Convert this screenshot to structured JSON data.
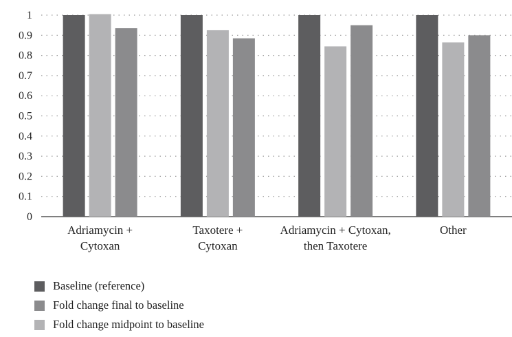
{
  "chart_data": {
    "type": "bar",
    "title": "",
    "xlabel": "",
    "ylabel": "",
    "ylim": [
      0,
      1
    ],
    "yticks": [
      "0",
      "0.1",
      "0.2",
      "0.3",
      "0.4",
      "0.5",
      "0.6",
      "0.7",
      "0.8",
      "0.9",
      "1"
    ],
    "grid": "dotted horizontal",
    "categories": [
      [
        "Adriamycin +",
        "Cytoxan"
      ],
      [
        "Taxotere +",
        "Cytoxan"
      ],
      [
        "Adriamycin + Cytoxan,",
        "then Taxotere"
      ],
      [
        "Other"
      ]
    ],
    "series": [
      {
        "name": "Baseline (reference)",
        "color": "#5d5d5f",
        "values": [
          1,
          1,
          1,
          1
        ]
      },
      {
        "name": "Fold change midpoint to baseline",
        "color": "#b3b3b5",
        "values": [
          1.005,
          0.925,
          0.845,
          0.865
        ]
      },
      {
        "name": "Fold change final to baseline",
        "color": "#8b8b8d",
        "values": [
          0.935,
          0.885,
          0.95,
          0.9
        ]
      }
    ],
    "legend_position": "bottom-left",
    "legend": [
      {
        "label": "Baseline (reference)",
        "color": "#5d5d5f"
      },
      {
        "label": "Fold change final to baseline",
        "color": "#8b8b8d"
      },
      {
        "label": "Fold change midpoint to baseline",
        "color": "#b3b3b5"
      }
    ]
  }
}
